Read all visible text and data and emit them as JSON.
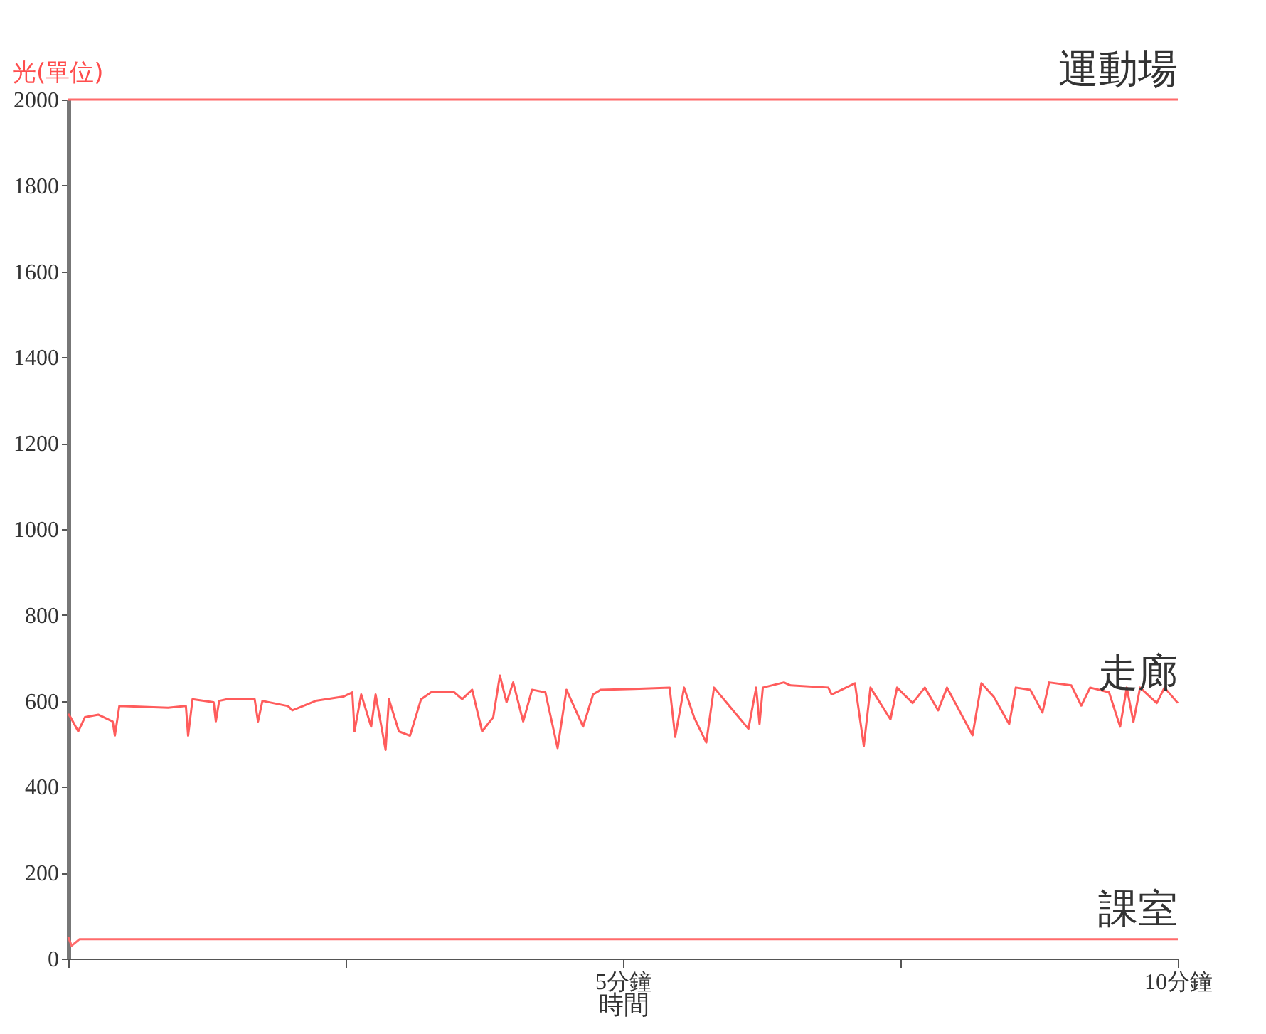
{
  "chart_data": {
    "type": "line",
    "xlabel": "時間",
    "ylabel": "光(單位)",
    "xlim": [
      0,
      10
    ],
    "xticks": [
      {
        "value": 0,
        "label": null
      },
      {
        "value": 2.5,
        "label": null
      },
      {
        "value": 5,
        "label": "5分鐘"
      },
      {
        "value": 7.5,
        "label": null
      },
      {
        "value": 10,
        "label": "10分鐘"
      }
    ],
    "ylim": [
      0,
      2000
    ],
    "yticks": [
      0,
      200,
      400,
      600,
      800,
      1000,
      1200,
      1400,
      1600,
      1800,
      2000
    ],
    "line_style": "solid",
    "series": [
      {
        "name": "運動場",
        "color": "#ff6b6b",
        "x": [
          0,
          10
        ],
        "values": [
          2000,
          2000
        ]
      },
      {
        "name": "走廊",
        "color": "#ff5c5c",
        "x": [
          0,
          0.02,
          0.09,
          0.15,
          0.27,
          0.4,
          0.42,
          0.46,
          0.9,
          1.06,
          1.08,
          1.12,
          1.31,
          1.33,
          1.36,
          1.43,
          1.68,
          1.71,
          1.75,
          1.98,
          2.02,
          2.23,
          2.48,
          2.56,
          2.58,
          2.64,
          2.73,
          2.77,
          2.86,
          2.89,
          2.98,
          3.08,
          3.18,
          3.27,
          3.48,
          3.55,
          3.64,
          3.73,
          3.83,
          3.89,
          3.95,
          4.01,
          4.1,
          4.18,
          4.3,
          4.41,
          4.49,
          4.64,
          4.73,
          4.8,
          5.1,
          5.42,
          5.47,
          5.55,
          5.64,
          5.75,
          5.82,
          6.13,
          6.2,
          6.23,
          6.26,
          6.45,
          6.51,
          6.85,
          6.88,
          7.09,
          7.17,
          7.23,
          7.41,
          7.47,
          7.61,
          7.72,
          7.84,
          7.92,
          8.15,
          8.23,
          8.34,
          8.48,
          8.54,
          8.67,
          8.78,
          8.84,
          9.04,
          9.13,
          9.21,
          9.38,
          9.48,
          9.54,
          9.6,
          9.66,
          9.81,
          9.88,
          10
        ],
        "values": [
          570,
          562,
          529,
          562,
          568,
          552,
          519,
          588,
          584,
          588,
          519,
          604,
          597,
          552,
          600,
          604,
          604,
          552,
          600,
          588,
          578,
          600,
          610,
          620,
          529,
          615,
          540,
          615,
          486,
          604,
          529,
          519,
          604,
          620,
          620,
          604,
          626,
          529,
          562,
          659,
          597,
          643,
          552,
          626,
          620,
          490,
          626,
          540,
          615,
          626,
          628,
          631,
          516,
          631,
          562,
          503,
          631,
          535,
          631,
          546,
          631,
          643,
          636,
          631,
          615,
          641,
          495,
          631,
          557,
          631,
          595,
          631,
          578,
          631,
          520,
          641,
          610,
          546,
          631,
          626,
          573,
          643,
          636,
          589,
          631,
          620,
          540,
          631,
          551,
          631,
          595,
          631,
          595
        ]
      },
      {
        "name": "課室",
        "color": "#ff6b6b",
        "x": [
          0,
          0.03,
          0.1,
          5,
          10
        ],
        "values": [
          50,
          30,
          45,
          45,
          45
        ]
      }
    ]
  }
}
